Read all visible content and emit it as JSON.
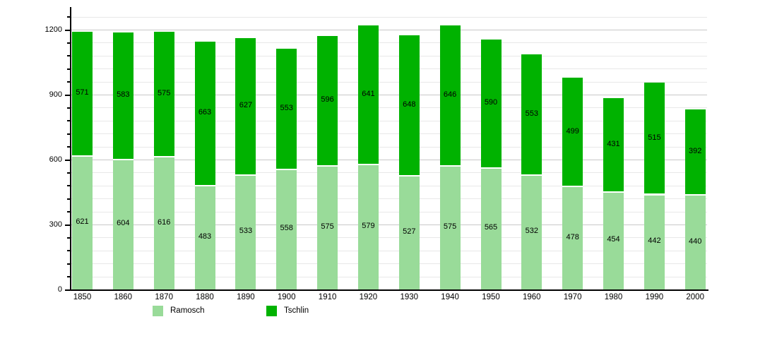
{
  "chart_data": {
    "type": "bar",
    "stacked": true,
    "title": "",
    "xlabel": "",
    "ylabel": "",
    "categories": [
      "1850",
      "1860",
      "1870",
      "1880",
      "1890",
      "1900",
      "1910",
      "1920",
      "1930",
      "1940",
      "1950",
      "1960",
      "1970",
      "1980",
      "1990",
      "2000"
    ],
    "series": [
      {
        "name": "Ramosch",
        "color": "#99DB99",
        "values": [
          621,
          604,
          616,
          483,
          533,
          558,
          575,
          579,
          527,
          575,
          565,
          532,
          478,
          454,
          442,
          440
        ]
      },
      {
        "name": "Tschlin",
        "color": "#00B200",
        "values": [
          571,
          583,
          575,
          663,
          627,
          553,
          596,
          641,
          648,
          646,
          590,
          553,
          499,
          431,
          515,
          392
        ]
      }
    ],
    "ylim": [
      0,
      1260
    ],
    "yticks_major": [
      0,
      300,
      600,
      900,
      1200
    ],
    "ytick_minor_step": 60,
    "grid": true,
    "bar_value_labels": true,
    "legend_position": "bottom"
  }
}
